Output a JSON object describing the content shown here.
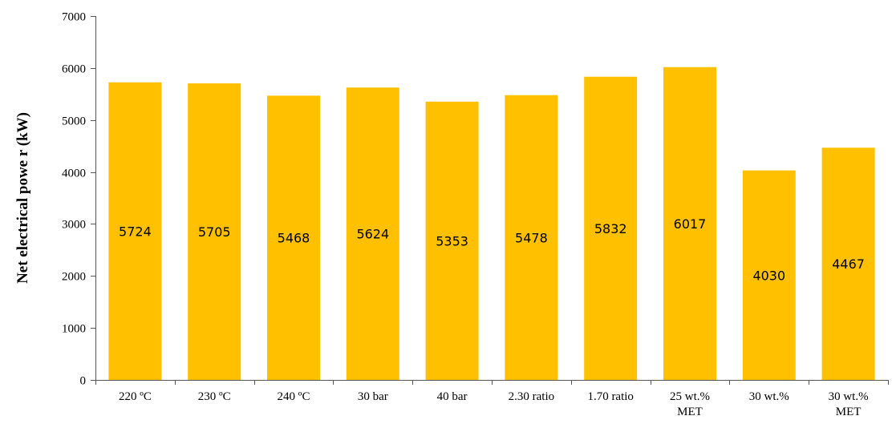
{
  "chart_data": {
    "type": "bar",
    "title": "",
    "xlabel": "",
    "ylabel": "Net electrical powe r (kW)",
    "categories": [
      [
        "220 ºC"
      ],
      [
        "230 ºC"
      ],
      [
        "240 ºC"
      ],
      [
        "30 bar"
      ],
      [
        "40 bar"
      ],
      [
        "2.30 ratio"
      ],
      [
        "1.70 ratio"
      ],
      [
        "25 wt.%",
        "MET"
      ],
      [
        "30 wt.%"
      ],
      [
        "30 wt.%",
        "MET"
      ]
    ],
    "values": [
      5724,
      5705,
      5468,
      5624,
      5353,
      5478,
      5832,
      6017,
      4030,
      4467
    ],
    "data_labels": [
      "5724",
      "5705",
      "5468",
      "5624",
      "5353",
      "5478",
      "5832",
      "6017",
      "4030",
      "4467"
    ],
    "ylim": [
      0,
      7000
    ],
    "yticks": [
      0,
      1000,
      2000,
      3000,
      4000,
      5000,
      6000,
      7000
    ],
    "ytick_labels": [
      "0",
      "1000",
      "2000",
      "3000",
      "4000",
      "5000",
      "6000",
      "7000"
    ],
    "grid": false,
    "legend": "none",
    "bar_color": "#FFC000",
    "axis_color": "#555555",
    "text_color": "#000000"
  }
}
